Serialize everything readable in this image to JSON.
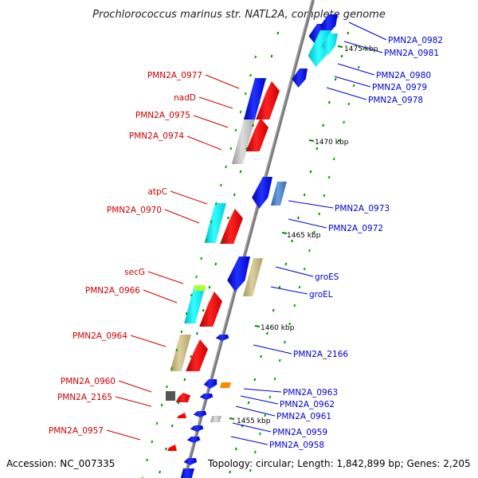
{
  "title": "Prochlorococcus marinus str. NATL2A, complete genome",
  "footer": {
    "accession": "Accession: NC_007335",
    "topology": "Topology: circular; Length: 1,842,899 bp; Genes: 2,205"
  },
  "scale_ticks": [
    "1475 kbp",
    "1470 kbp",
    "1465 kbp",
    "1460 kbp",
    "1455 kbp"
  ],
  "left_labels": [
    "PMN2A_0977",
    "nadD",
    "PMN2A_0975",
    "PMN2A_0974",
    "atpC",
    "PMN2A_0970",
    "secG",
    "PMN2A_0966",
    "PMN2A_0964",
    "PMN2A_0960",
    "PMN2A_2165",
    "PMN2A_0957"
  ],
  "right_labels": [
    "PMN2A_0982",
    "PMN2A_0981",
    "PMN2A_0980",
    "PMN2A_0979",
    "PMN2A_0978",
    "PMN2A_0973",
    "PMN2A_0972",
    "groES",
    "groEL",
    "PMN2A_2166",
    "PMN2A_0963",
    "PMN2A_0962",
    "PMN2A_0961",
    "PMN2A_0959",
    "PMN2A_0958"
  ],
  "colors": {
    "forward_label": "#cc0000",
    "reverse_label": "#0000cc",
    "red": "#ff0000",
    "blue": "#0000ff",
    "cyan": "#00ffff",
    "steel": "#4a7fbf",
    "khaki": "#c8b878",
    "gray": "#bbbbbb",
    "dark": "#555555",
    "lime": "#aaff33",
    "orange": "#ff8800",
    "green_tick": "#008800"
  }
}
